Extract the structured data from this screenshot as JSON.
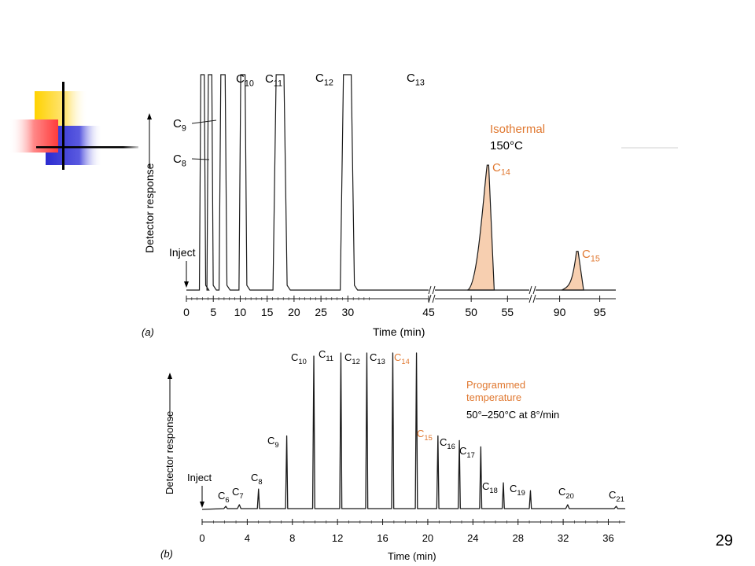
{
  "slide": {
    "page_number": "29",
    "accent_colors": {
      "yellow": "#ffd200",
      "red": "#ff3b3b",
      "blue": "#2b2bd0",
      "highlight": "#e07830",
      "fill": "#f7cfb0"
    }
  },
  "chart_data": [
    {
      "type": "line",
      "panel_label": "(a)",
      "xlabel": "Time (min)",
      "ylabel": "Detector response",
      "annotation": {
        "title": "Isothermal",
        "subtitle": "150°C"
      },
      "inject_label": "Inject",
      "segments": [
        {
          "xlim": [
            0,
            45
          ],
          "ticks": [
            0,
            5,
            10,
            15,
            20,
            25,
            30,
            45
          ]
        },
        {
          "xlim": [
            45,
            58
          ],
          "ticks": [
            50,
            55
          ]
        },
        {
          "xlim": [
            87,
            97
          ],
          "ticks": [
            90,
            95
          ]
        }
      ],
      "peaks": [
        {
          "label": "C8",
          "sub": "8",
          "time": 3.0,
          "height": 1.0,
          "off_scale": true
        },
        {
          "label": "C9",
          "sub": "9",
          "time": 4.4,
          "height": 1.0,
          "off_scale": true
        },
        {
          "label": "C10",
          "sub": "10",
          "time": 6.8,
          "height": 1.0,
          "off_scale": true
        },
        {
          "label": "C11",
          "sub": "11",
          "time": 10.5,
          "height": 1.0,
          "off_scale": true
        },
        {
          "label": "C12",
          "sub": "12",
          "time": 17.4,
          "height": 1.0,
          "off_scale": true
        },
        {
          "label": "C13",
          "sub": "13",
          "time": 29.9,
          "height": 1.0,
          "off_scale": true
        },
        {
          "label": "C14",
          "sub": "14",
          "time": 52.3,
          "height": 0.58,
          "off_scale": false,
          "highlight": true
        },
        {
          "label": "C15",
          "sub": "15",
          "time": 92.2,
          "height": 0.18,
          "off_scale": false,
          "highlight": true
        }
      ]
    },
    {
      "type": "line",
      "panel_label": "(b)",
      "xlabel": "Time (min)",
      "ylabel": "Detector response",
      "annotation": {
        "title_line1": "Programmed",
        "title_line2": "temperature",
        "subtitle": "50°–250°C at 8°/min"
      },
      "inject_label": "Inject",
      "xlim": [
        0,
        37.5
      ],
      "ticks": [
        0,
        4,
        8,
        12,
        16,
        20,
        24,
        28,
        32,
        36
      ],
      "peaks": [
        {
          "label": "C6",
          "sub": "6",
          "time": 2.1,
          "height": 0.02
        },
        {
          "label": "C7",
          "sub": "7",
          "time": 3.3,
          "height": 0.03
        },
        {
          "label": "C8",
          "sub": "8",
          "time": 5.0,
          "height": 0.13
        },
        {
          "label": "C9",
          "sub": "9",
          "time": 7.5,
          "height": 0.47
        },
        {
          "label": "C10",
          "sub": "10",
          "time": 9.9,
          "height": 0.98
        },
        {
          "label": "C11",
          "sub": "11",
          "time": 12.3,
          "height": 1.0
        },
        {
          "label": "C12",
          "sub": "12",
          "time": 14.6,
          "height": 1.0
        },
        {
          "label": "C13",
          "sub": "13",
          "time": 16.9,
          "height": 1.0
        },
        {
          "label": "C14",
          "sub": "14",
          "time": 19.0,
          "height": 1.0,
          "highlight": true
        },
        {
          "label": "C15",
          "sub": "15",
          "time": 20.9,
          "height": 0.47
        },
        {
          "label": "C16",
          "sub": "16",
          "time": 22.8,
          "height": 0.44
        },
        {
          "label": "C17",
          "sub": "17",
          "time": 24.7,
          "height": 0.4
        },
        {
          "label": "C18",
          "sub": "18",
          "time": 26.7,
          "height": 0.17
        },
        {
          "label": "C19",
          "sub": "19",
          "time": 29.1,
          "height": 0.12
        },
        {
          "label": "C20",
          "sub": "20",
          "time": 32.4,
          "height": 0.03
        },
        {
          "label": "C21",
          "sub": "21",
          "time": 36.7,
          "height": 0.02
        }
      ]
    }
  ]
}
